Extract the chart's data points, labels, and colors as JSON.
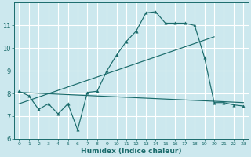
{
  "xlabel": "Humidex (Indice chaleur)",
  "bg_color": "#cce8ee",
  "grid_color": "#ffffff",
  "line_color": "#1a6b6b",
  "xlim": [
    -0.5,
    23.5
  ],
  "ylim": [
    6,
    12
  ],
  "yticks": [
    6,
    7,
    8,
    9,
    10,
    11
  ],
  "xticks": [
    0,
    1,
    2,
    3,
    4,
    5,
    6,
    7,
    8,
    9,
    10,
    11,
    12,
    13,
    14,
    15,
    16,
    17,
    18,
    19,
    20,
    21,
    22,
    23
  ],
  "line1_x": [
    0,
    1,
    2,
    3,
    4,
    5,
    6,
    7,
    8,
    9,
    10,
    11,
    12,
    13,
    14,
    15,
    16,
    17,
    18,
    19,
    20,
    21,
    22,
    23
  ],
  "line1_y": [
    8.1,
    7.9,
    7.3,
    7.55,
    7.1,
    7.55,
    6.4,
    8.05,
    8.1,
    9.0,
    9.7,
    10.3,
    10.75,
    11.55,
    11.6,
    11.1,
    11.1,
    11.1,
    11.0,
    9.6,
    7.6,
    7.6,
    7.5,
    7.45
  ],
  "line2_x": [
    0,
    20
  ],
  "line2_y": [
    7.55,
    10.5
  ],
  "line3_x": [
    0,
    23
  ],
  "line3_y": [
    8.05,
    7.6
  ],
  "xlabel_fontsize": 6.5,
  "tick_fontsize_x": 4.5,
  "tick_fontsize_y": 6
}
